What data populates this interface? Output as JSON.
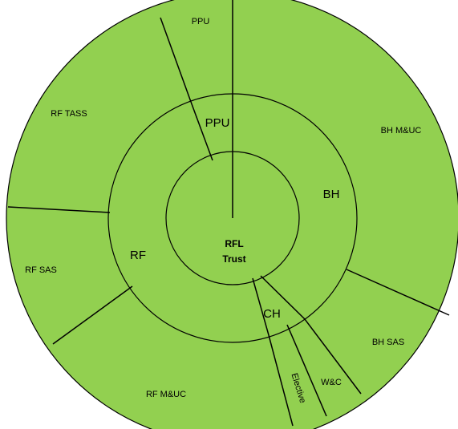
{
  "diagram": {
    "fill_color": "#92d050",
    "line_color": "#000000",
    "center": {
      "line1": "RFL",
      "line2": "Trust"
    },
    "middle_ring": {
      "ppu": "PPU",
      "bh": "BH",
      "rf": "RF",
      "ch": "CH"
    },
    "outer_ring": {
      "ppu": "PPU",
      "rf_tass": "RF TASS",
      "bh_mduc": "BH M&UC",
      "rf_sas": "RF SAS",
      "bh_sas": "BH SAS",
      "rf_mduc": "RF M&UC",
      "elective": "Elective",
      "wc": "W&C"
    }
  }
}
